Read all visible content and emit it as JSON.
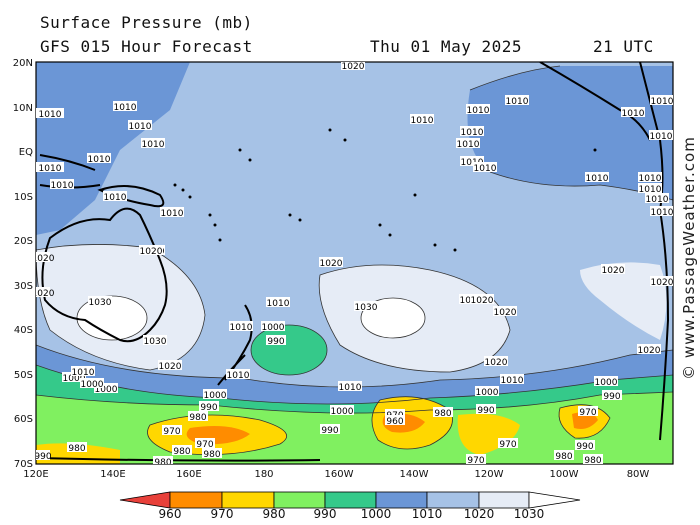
{
  "header": {
    "title_line1": "Surface Pressure (mb)",
    "title_line2": "GFS 015 Hour Forecast",
    "date": "Thu 01 May 2025",
    "time": "21 UTC"
  },
  "credit": "© www.PassageWeather.com",
  "axes": {
    "lat_labels": [
      "20N",
      "10N",
      "EQ",
      "10S",
      "20S",
      "30S",
      "40S",
      "50S",
      "60S",
      "70S"
    ],
    "lon_labels": [
      "120E",
      "140E",
      "160E",
      "180",
      "160W",
      "140W",
      "120W",
      "100W",
      "80W"
    ]
  },
  "legend": {
    "values": [
      "960",
      "970",
      "980",
      "990",
      "1000",
      "1010",
      "1020",
      "1030"
    ],
    "colors": [
      "#e8403a",
      "#ff8c00",
      "#ffd700",
      "#80f060",
      "#35c98a",
      "#6b96d6",
      "#a6c2e6",
      "#e6ecf6",
      "#ffffff"
    ]
  },
  "contour_labels": [
    {
      "text": "1020"
    },
    {
      "text": "1010"
    },
    {
      "text": "1010"
    },
    {
      "text": "1010"
    },
    {
      "text": "1010"
    },
    {
      "text": "1010"
    },
    {
      "text": "1010"
    },
    {
      "text": "1010"
    },
    {
      "text": "1010"
    },
    {
      "text": "1010"
    },
    {
      "text": "1010"
    },
    {
      "text": "1010"
    },
    {
      "text": "1010"
    },
    {
      "text": "1010"
    },
    {
      "text": "1010"
    },
    {
      "text": "1010"
    },
    {
      "text": "1010"
    },
    {
      "text": "1020"
    },
    {
      "text": "1020"
    },
    {
      "text": "1020"
    },
    {
      "text": "1030"
    },
    {
      "text": "1030"
    },
    {
      "text": "1020"
    },
    {
      "text": "1020"
    },
    {
      "text": "1020"
    },
    {
      "text": "1020"
    },
    {
      "text": "1030"
    },
    {
      "text": "1020"
    },
    {
      "text": "1010"
    },
    {
      "text": "1010"
    },
    {
      "text": "1000"
    },
    {
      "text": "990"
    },
    {
      "text": "1010"
    },
    {
      "text": "1010"
    },
    {
      "text": "1000"
    },
    {
      "text": "1000"
    },
    {
      "text": "1000"
    },
    {
      "text": "990"
    },
    {
      "text": "980"
    },
    {
      "text": "990"
    },
    {
      "text": "970"
    },
    {
      "text": "970"
    },
    {
      "text": "980"
    },
    {
      "text": "980"
    },
    {
      "text": "970"
    },
    {
      "text": "960"
    },
    {
      "text": "980"
    },
    {
      "text": "990"
    },
    {
      "text": "1000"
    },
    {
      "text": "1010"
    },
    {
      "text": "970"
    },
    {
      "text": "970"
    },
    {
      "text": "970"
    },
    {
      "text": "980"
    },
    {
      "text": "980"
    },
    {
      "text": "990"
    },
    {
      "text": "1000"
    },
    {
      "text": "980"
    },
    {
      "text": "1000"
    },
    {
      "text": "990"
    },
    {
      "text": "1020"
    },
    {
      "text": "1020"
    },
    {
      "text": "1010"
    },
    {
      "text": "1010"
    },
    {
      "text": "1010"
    },
    {
      "text": "1010"
    },
    {
      "text": "1010"
    },
    {
      "text": "1010"
    },
    {
      "text": "1010"
    },
    {
      "text": "1010"
    },
    {
      "text": "1020"
    },
    {
      "text": "1030"
    },
    {
      "text": "1020"
    },
    {
      "text": "1000"
    },
    {
      "text": "1010"
    },
    {
      "text": "990"
    },
    {
      "text": "980"
    },
    {
      "text": "1020"
    },
    {
      "text": "1020"
    }
  ]
}
